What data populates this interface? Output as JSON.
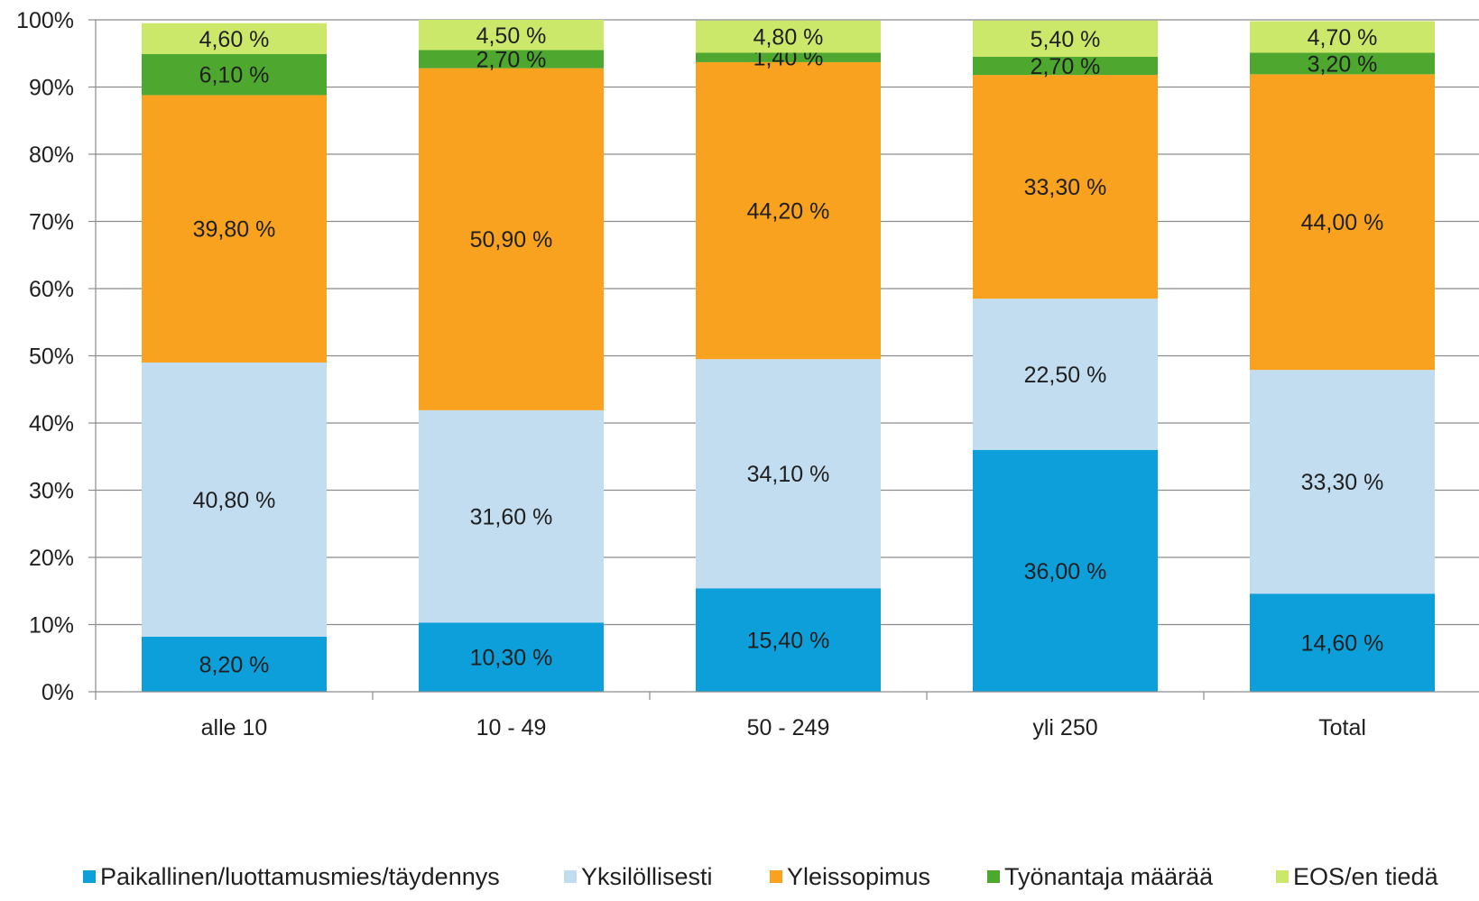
{
  "chart_data": {
    "type": "bar",
    "stacked": true,
    "categories": [
      "alle 10",
      "10 - 49",
      "50 - 249",
      "yli 250",
      "Total"
    ],
    "y_tick_labels": [
      "0%",
      "10%",
      "20%",
      "30%",
      "40%",
      "50%",
      "60%",
      "70%",
      "80%",
      "90%",
      "100%"
    ],
    "ylim": [
      0,
      100
    ],
    "grid": true,
    "legend_position": "bottom",
    "series": [
      {
        "name": "Paikallinen/luottamusmies/täydennys",
        "color": "#0c9fd9",
        "values": [
          8.2,
          10.3,
          15.4,
          36.0,
          14.6
        ],
        "labels": [
          "8,20 %",
          "10,30 %",
          "15,40 %",
          "36,00 %",
          "14,60 %"
        ]
      },
      {
        "name": "Yksilöllisesti",
        "color": "#c2dcf0",
        "values": [
          40.8,
          31.6,
          34.1,
          22.5,
          33.3
        ],
        "labels": [
          "40,80 %",
          "31,60 %",
          "34,10 %",
          "22,50 %",
          "33,30 %"
        ]
      },
      {
        "name": "Yleissopimus",
        "color": "#f8a21f",
        "values": [
          39.8,
          50.9,
          44.2,
          33.3,
          44.0
        ],
        "labels": [
          "39,80 %",
          "50,90 %",
          "44,20 %",
          "33,30 %",
          "44,00 %"
        ]
      },
      {
        "name": "Työnantaja määrää",
        "color": "#4ea72e",
        "values": [
          6.1,
          2.7,
          1.4,
          2.7,
          3.2
        ],
        "labels": [
          "6,10 %",
          "2,70 %",
          "1,40 %",
          "2,70 %",
          "3,20 %"
        ]
      },
      {
        "name": "EOS/en tiedä",
        "color": "#cbe86b",
        "values": [
          4.6,
          4.5,
          4.8,
          5.4,
          4.7
        ],
        "labels": [
          "4,60 %",
          "4,50 %",
          "4,80 %",
          "5,40 %",
          "4,70 %"
        ]
      }
    ]
  }
}
